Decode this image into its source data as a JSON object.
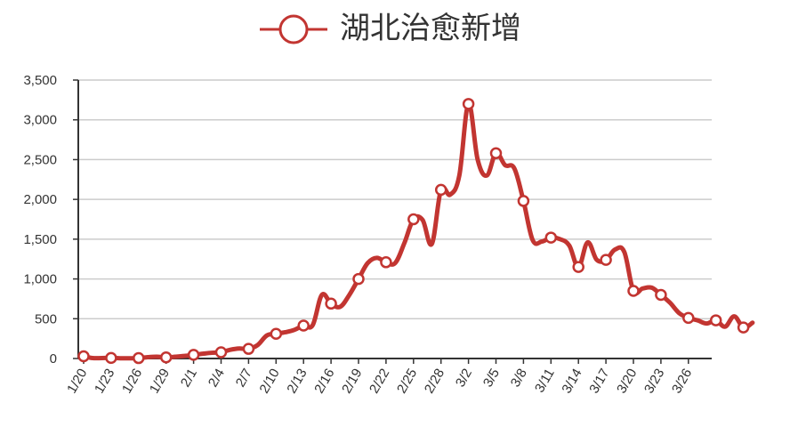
{
  "chart_data": {
    "type": "line",
    "series": [
      {
        "name": "湖北治愈新增",
        "color": "#c23531",
        "values": [
          28,
          5,
          6,
          7,
          3,
          3,
          5,
          17,
          22,
          14,
          22,
          32,
          46,
          60,
          72,
          78,
          110,
          126,
          121,
          170,
          290,
          310,
          330,
          360,
          414,
          420,
          800,
          690,
          650,
          800,
          1000,
          1200,
          1265,
          1210,
          1200,
          1450,
          1750,
          1740,
          1440,
          2120,
          2060,
          2300,
          3200,
          2500,
          2300,
          2580,
          2430,
          2390,
          1980,
          1490,
          1470,
          1520,
          1500,
          1420,
          1150,
          1460,
          1240,
          1240,
          1370,
          1340,
          850,
          880,
          890,
          800,
          700,
          570,
          510,
          480,
          440,
          480,
          400,
          530,
          390,
          450
        ]
      }
    ],
    "x_tick_labels": [
      "1/20",
      "1/23",
      "1/26",
      "1/29",
      "2/1",
      "2/4",
      "2/7",
      "2/10",
      "2/13",
      "2/16",
      "2/19",
      "2/22",
      "2/25",
      "2/28",
      "3/2",
      "3/5",
      "3/8",
      "3/11",
      "3/14",
      "3/17",
      "3/20",
      "3/23",
      "3/26"
    ],
    "marker_every": 3,
    "y_ticks": [
      0,
      500,
      1000,
      1500,
      2000,
      2500,
      3000,
      3500
    ],
    "y_tick_labels": [
      "0",
      "500",
      "1,000",
      "1,500",
      "2,000",
      "2,500",
      "3,000",
      "3,500"
    ],
    "ylim": [
      0,
      3500
    ],
    "grid": true,
    "legend_position": "top-center",
    "title": "",
    "xlabel": "",
    "ylabel": ""
  }
}
